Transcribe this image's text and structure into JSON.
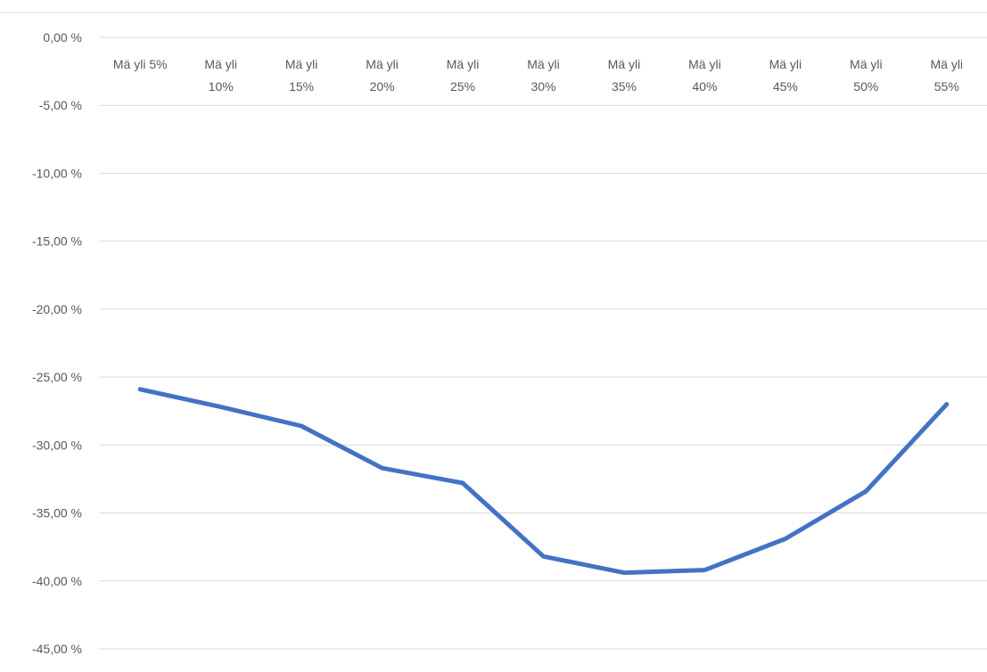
{
  "chart_data": {
    "type": "line",
    "title": "",
    "xlabel": "",
    "ylabel": "",
    "categories": [
      [
        "Mä yli 5%"
      ],
      [
        "Mä yli",
        "10%"
      ],
      [
        "Mä yli",
        "15%"
      ],
      [
        "Mä yli",
        "20%"
      ],
      [
        "Mä yli",
        "25%"
      ],
      [
        "Mä yli",
        "30%"
      ],
      [
        "Mä yli",
        "35%"
      ],
      [
        "Mä yli",
        "40%"
      ],
      [
        "Mä yli",
        "45%"
      ],
      [
        "Mä yli",
        "50%"
      ],
      [
        "Mä yli",
        "55%"
      ]
    ],
    "series": [
      {
        "values": [
          -25.9,
          -27.2,
          -28.6,
          -31.7,
          -32.8,
          -38.2,
          -39.4,
          -39.2,
          -36.9,
          -33.4,
          -27.0
        ],
        "color": "#4472c4"
      }
    ],
    "ylim": [
      -45,
      0
    ],
    "yticks": [
      0,
      -5,
      -10,
      -15,
      -20,
      -25,
      -30,
      -35,
      -40,
      -45
    ],
    "ytick_labels": [
      "0,00 %",
      "-5,00 %",
      "-10,00 %",
      "-15,00 %",
      "-20,00 %",
      "-25,00 %",
      "-30,00 %",
      "-35,00 %",
      "-40,00 %",
      "-45,00 %"
    ],
    "grid": true,
    "legend": "none",
    "x_axis_position": "top"
  }
}
